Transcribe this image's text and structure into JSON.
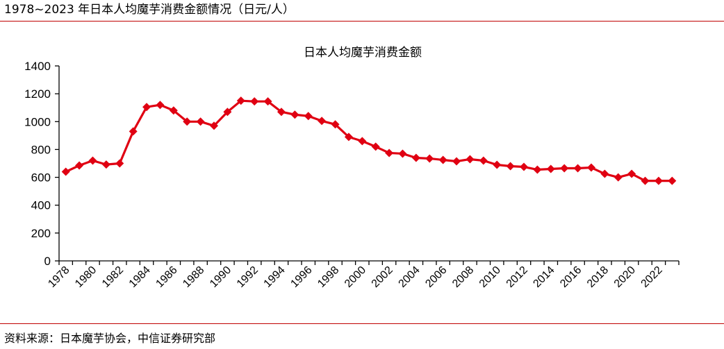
{
  "figure_title": "1978~2023 年日本人均魔芋消费金额情况（日元/人）",
  "source": "资料来源：日本魔芋协会，中信证券研究部",
  "colors": {
    "series": "#e00012",
    "rule": "#c00000",
    "axis": "#000000"
  },
  "chart_data": {
    "type": "line",
    "title": "日本人均魔芋消费金额",
    "xlabel": "",
    "ylabel": "",
    "ylim": [
      0,
      1400
    ],
    "yticks": [
      0,
      200,
      400,
      600,
      800,
      1000,
      1200,
      1400
    ],
    "grid": false,
    "legend": "none",
    "x": [
      1978,
      1979,
      1980,
      1981,
      1982,
      1983,
      1984,
      1985,
      1986,
      1987,
      1988,
      1989,
      1990,
      1991,
      1992,
      1993,
      1994,
      1995,
      1996,
      1997,
      1998,
      1999,
      2000,
      2001,
      2002,
      2003,
      2004,
      2005,
      2006,
      2007,
      2008,
      2009,
      2010,
      2011,
      2012,
      2013,
      2014,
      2015,
      2016,
      2017,
      2018,
      2019,
      2020,
      2021,
      2022,
      2023
    ],
    "xtick_labels": [
      "1978",
      "1980",
      "1982",
      "1984",
      "1986",
      "1988",
      "1990",
      "1992",
      "1994",
      "1996",
      "1998",
      "2000",
      "2002",
      "2004",
      "2006",
      "2008",
      "2010",
      "2012",
      "2014",
      "2016",
      "2018",
      "2020",
      "2022"
    ],
    "series": [
      {
        "name": "日本人均魔芋消费金额",
        "values": [
          640,
          685,
          720,
          692,
          700,
          930,
          1105,
          1120,
          1080,
          1000,
          1000,
          970,
          1070,
          1150,
          1145,
          1145,
          1070,
          1050,
          1040,
          1005,
          980,
          890,
          860,
          820,
          775,
          770,
          740,
          735,
          725,
          715,
          730,
          720,
          690,
          680,
          675,
          655,
          660,
          665,
          665,
          670,
          625,
          600,
          625,
          575,
          575,
          575
        ]
      }
    ]
  }
}
